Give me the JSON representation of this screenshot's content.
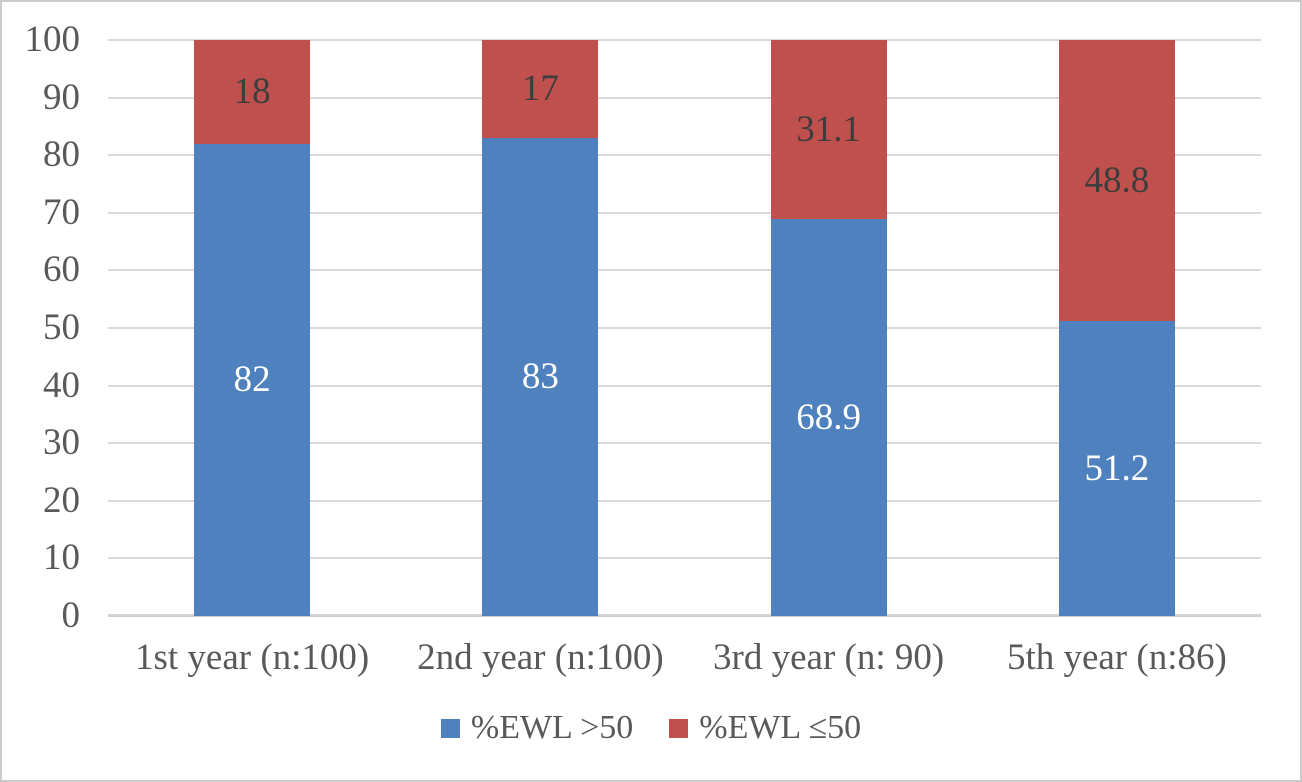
{
  "figure": {
    "background": "#FFFFFF",
    "border_color": "#CBCBCB"
  },
  "chart_data": {
    "type": "bar",
    "stacked": true,
    "title": "",
    "xlabel": "",
    "ylabel": "",
    "categories": [
      "1st year (n:100)",
      "2nd year (n:100)",
      "3rd year (n: 90)",
      "5th year (n:86)"
    ],
    "series": [
      {
        "name": "%EWL >50",
        "color": "#4E81BD",
        "label_color": "#FFFFFF",
        "values": [
          82,
          83,
          68.9,
          51.2
        ]
      },
      {
        "name": "%EWL ≤50",
        "color": "#C0504D",
        "label_color": "#3D3D3D",
        "values": [
          18,
          17,
          31.1,
          48.8
        ]
      }
    ],
    "data_labels": {
      "series_0": [
        "82",
        "83",
        "68.9",
        "51.2"
      ],
      "series_1": [
        "18",
        "17",
        "31.1",
        "48.8"
      ]
    },
    "ylim": [
      0,
      100
    ],
    "yticks": [
      0,
      10,
      20,
      30,
      40,
      50,
      60,
      70,
      80,
      90,
      100
    ],
    "grid": true,
    "gridline_color": "#D9D9D9",
    "axis_line_color": "#D2D2D2",
    "tick_label_color": "#595959",
    "category_label_color": "#595959",
    "legend_position": "bottom",
    "legend_text_color": "#595959"
  }
}
